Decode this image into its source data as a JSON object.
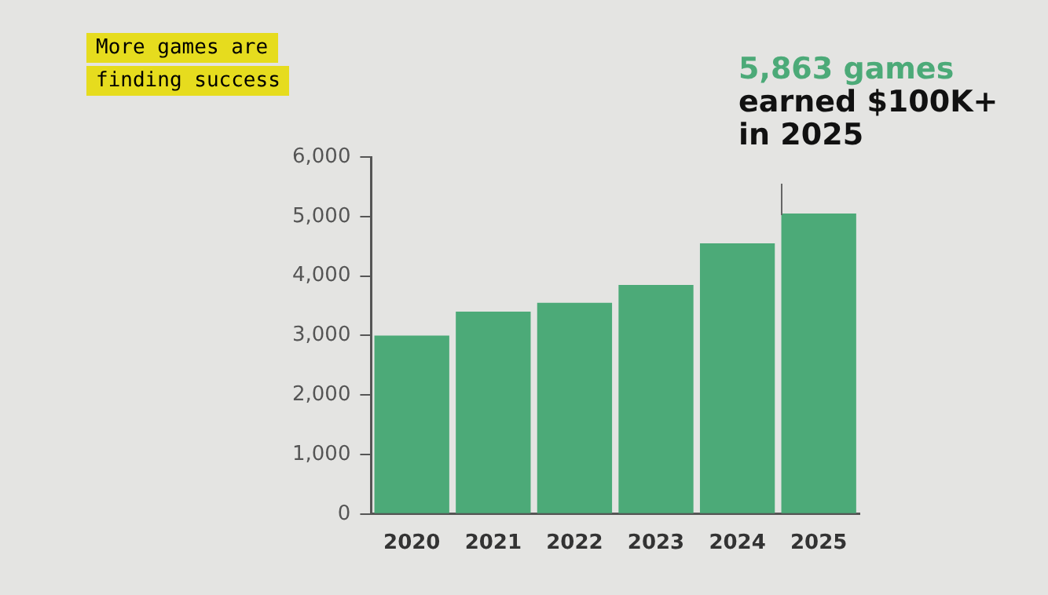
{
  "chart_data": {
    "type": "bar",
    "title": "More games are finding success",
    "categories": [
      "2020",
      "2021",
      "2022",
      "2023",
      "2024",
      "2025"
    ],
    "values": [
      3000,
      3400,
      3550,
      3850,
      4550,
      5050
    ],
    "color": "#4caa78",
    "ylim": [
      0,
      6000
    ],
    "yticks": [
      0,
      {
        "value": 1000,
        "label": "1,000"
      },
      {
        "value": 2000,
        "label": "2,000"
      },
      {
        "value": 3000,
        "label": "3,000"
      },
      {
        "value": 4000,
        "label": "4,000"
      },
      {
        "value": 5000,
        "label": "5,000"
      },
      {
        "value": 6000,
        "label": "6,000"
      }
    ],
    "grid": false,
    "legend": false,
    "annotations": [
      "5,863 games",
      "earned $100K+ in 2025"
    ]
  }
}
